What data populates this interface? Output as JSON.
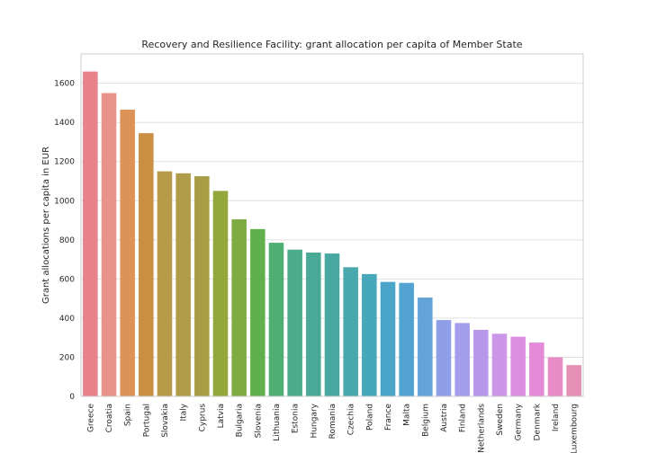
{
  "chart_data": {
    "type": "bar",
    "title": "Recovery and Resilience Facility: grant allocation per capita of Member State",
    "xlabel": "",
    "ylabel": "Grant allocations per capita in EUR",
    "ylim": [
      0,
      1750
    ],
    "yticks": [
      0,
      200,
      400,
      600,
      800,
      1000,
      1200,
      1400,
      1600
    ],
    "grid": true,
    "categories": [
      "Greece",
      "Croatia",
      "Spain",
      "Portugal",
      "Slovakia",
      "Italy",
      "Cyprus",
      "Latvia",
      "Bulgaria",
      "Slovenia",
      "Lithuania",
      "Estonia",
      "Hungary",
      "Romania",
      "Czechia",
      "Poland",
      "France",
      "Malta",
      "Belgium",
      "Austria",
      "Finland",
      "Netherlands",
      "Sweden",
      "Germany",
      "Denmark",
      "Ireland",
      "Luxembourg"
    ],
    "values": [
      1660,
      1550,
      1465,
      1345,
      1150,
      1140,
      1125,
      1050,
      905,
      855,
      785,
      750,
      735,
      730,
      660,
      625,
      585,
      580,
      505,
      390,
      375,
      340,
      320,
      305,
      275,
      200,
      160
    ],
    "colors": [
      "#e8838c",
      "#e8928a",
      "#dd9357",
      "#c98f42",
      "#b79b48",
      "#b09c48",
      "#a89d45",
      "#94a73c",
      "#7eac43",
      "#62b04d",
      "#4fae72",
      "#4cab8a",
      "#49a996",
      "#49a7a2",
      "#49a8ad",
      "#47a7bb",
      "#4aa5c8",
      "#52a3d2",
      "#63a3d8",
      "#8e9ee7",
      "#a49deb",
      "#b797ea",
      "#cc96e9",
      "#dc8ee3",
      "#e58ad8",
      "#e78cc6",
      "#e68fb5"
    ]
  }
}
